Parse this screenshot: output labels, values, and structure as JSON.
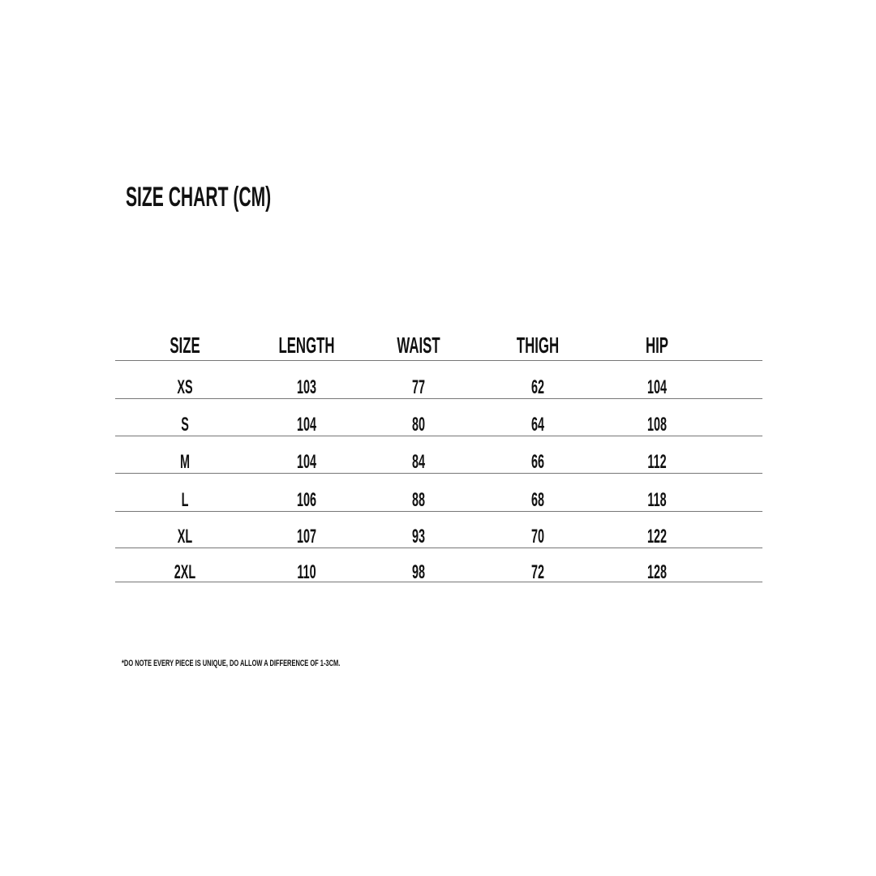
{
  "title": "SIZE CHART (CM)",
  "table": {
    "headers": [
      "SIZE",
      "LENGTH",
      "WAIST",
      "THIGH",
      "HIP"
    ],
    "rows": [
      [
        "XS",
        "103",
        "77",
        "62",
        "104"
      ],
      [
        "S",
        "104",
        "80",
        "64",
        "108"
      ],
      [
        "M",
        "104",
        "84",
        "66",
        "112"
      ],
      [
        "L",
        "106",
        "88",
        "68",
        "118"
      ],
      [
        "XL",
        "107",
        "93",
        "70",
        "122"
      ],
      [
        "2XL",
        "110",
        "98",
        "72",
        "128"
      ]
    ]
  },
  "note": "*DO NOTE EVERY PIECE IS UNIQUE, DO ALLOW A DIFFERENCE OF 1-3CM."
}
